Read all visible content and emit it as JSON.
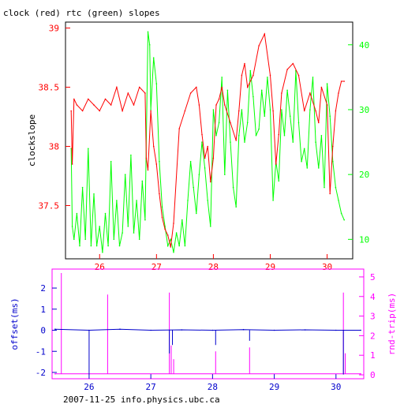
{
  "colors": {
    "red": "#ff0000",
    "green": "#00ff00",
    "blue": "#0000cc",
    "magenta": "#ff00ff",
    "axis": "#000000"
  },
  "chart_data": [
    {
      "type": "line",
      "title": "clock (red) rtc (green) slopes",
      "ylabel": "clockslope",
      "y2label": "",
      "xlim": [
        25.4,
        30.45
      ],
      "ylim": [
        37.05,
        39.05
      ],
      "y2lim": [
        7,
        43.5
      ],
      "x_ticks": [
        26,
        27,
        28,
        29,
        30
      ],
      "y_ticks": [
        37.5,
        38,
        38.5,
        39
      ],
      "y2_ticks": [
        10,
        20,
        30,
        40
      ],
      "series": [
        {
          "axis": "left",
          "x": [
            25.5,
            25.52,
            25.55,
            25.6,
            25.7,
            25.8,
            25.9,
            26.0,
            26.1,
            26.2,
            26.3,
            26.4,
            26.5,
            26.6,
            26.7,
            26.8,
            26.82,
            26.85,
            26.9,
            26.95,
            27.0,
            27.05,
            27.1,
            27.15,
            27.2,
            27.25,
            27.3,
            27.4,
            27.5,
            27.6,
            27.7,
            27.75,
            27.8,
            27.85,
            27.9,
            27.95,
            28.0,
            28.05,
            28.1,
            28.15,
            28.2,
            28.3,
            28.4,
            28.45,
            28.5,
            28.55,
            28.6,
            28.7,
            28.8,
            28.9,
            29.0,
            29.05,
            29.1,
            29.15,
            29.2,
            29.3,
            29.4,
            29.5,
            29.6,
            29.7,
            29.8,
            29.85,
            29.9,
            30.0,
            30.05,
            30.1,
            30.15,
            30.2,
            30.25,
            30.3
          ],
          "y": [
            38.3,
            37.85,
            38.4,
            38.35,
            38.3,
            38.4,
            38.35,
            38.3,
            38.4,
            38.35,
            38.5,
            38.3,
            38.45,
            38.35,
            38.5,
            38.45,
            37.9,
            37.8,
            38.3,
            38.0,
            37.85,
            37.6,
            37.4,
            37.3,
            37.25,
            37.15,
            37.35,
            38.15,
            38.3,
            38.45,
            38.5,
            38.35,
            38.1,
            37.9,
            38.0,
            37.7,
            37.9,
            38.35,
            38.4,
            38.5,
            38.35,
            38.2,
            38.05,
            38.3,
            38.6,
            38.7,
            38.5,
            38.6,
            38.85,
            38.95,
            38.6,
            38.3,
            37.85,
            38.1,
            38.45,
            38.65,
            38.7,
            38.6,
            38.3,
            38.45,
            38.3,
            38.2,
            38.5,
            38.35,
            37.6,
            38.0,
            38.3,
            38.45,
            38.55,
            38.55
          ]
        },
        {
          "axis": "right",
          "x": [
            25.5,
            25.52,
            25.55,
            25.6,
            25.65,
            25.7,
            25.75,
            25.8,
            25.85,
            25.9,
            25.95,
            26.0,
            26.05,
            26.1,
            26.15,
            26.2,
            26.25,
            26.3,
            26.35,
            26.4,
            26.45,
            26.5,
            26.55,
            26.6,
            26.65,
            26.7,
            26.75,
            26.8,
            26.85,
            26.88,
            26.9,
            26.95,
            27.0,
            27.05,
            27.1,
            27.15,
            27.2,
            27.25,
            27.3,
            27.35,
            27.4,
            27.45,
            27.5,
            27.55,
            27.6,
            27.65,
            27.7,
            27.75,
            27.8,
            27.85,
            27.9,
            27.95,
            28.0,
            28.05,
            28.1,
            28.15,
            28.2,
            28.25,
            28.3,
            28.35,
            28.4,
            28.45,
            28.5,
            28.55,
            28.6,
            28.65,
            28.7,
            28.75,
            28.8,
            28.85,
            28.9,
            28.95,
            29.0,
            29.05,
            29.1,
            29.15,
            29.2,
            29.25,
            29.3,
            29.35,
            29.4,
            29.45,
            29.5,
            29.55,
            29.6,
            29.65,
            29.7,
            29.75,
            29.8,
            29.85,
            29.9,
            29.95,
            30.0,
            30.05,
            30.1,
            30.15,
            30.2,
            30.25,
            30.3
          ],
          "y": [
            24,
            12,
            10,
            14,
            9,
            18,
            10,
            24,
            9,
            17,
            9,
            12,
            8,
            14,
            9,
            22,
            10,
            16,
            9,
            11,
            20,
            12,
            23,
            11,
            16,
            10,
            19,
            13,
            42,
            40,
            30,
            38,
            34,
            22,
            15,
            12,
            9,
            10,
            8,
            11,
            9,
            13,
            9,
            16,
            22,
            18,
            14,
            20,
            25,
            21,
            16,
            12,
            30,
            26,
            28,
            35,
            20,
            33,
            25,
            18,
            15,
            26,
            30,
            25,
            28,
            36,
            32,
            26,
            27,
            33,
            29,
            35,
            30,
            16,
            22,
            19,
            30,
            26,
            33,
            29,
            25,
            36,
            28,
            22,
            24,
            21,
            30,
            35,
            25,
            21,
            26,
            18,
            34,
            29,
            22,
            18,
            16,
            14,
            13
          ]
        }
      ]
    },
    {
      "type": "line",
      "xlabel": "",
      "ylabel": "offset(ms)",
      "y2label": "rnd-trip(ms)",
      "xlim": [
        25.4,
        30.45
      ],
      "ylim": [
        -2.3,
        2.9
      ],
      "y2lim": [
        -0.2,
        5.4
      ],
      "x_ticks": [
        26,
        27,
        28,
        29,
        30
      ],
      "y_ticks": [
        -2,
        -1,
        0,
        1,
        2
      ],
      "y2_ticks": [
        0,
        1,
        2,
        3,
        4,
        5
      ],
      "series": [
        {
          "axis": "left",
          "x": [
            25.45,
            26.0,
            26.5,
            27.0,
            27.5,
            28.0,
            28.5,
            29.0,
            29.5,
            30.0,
            30.4
          ],
          "y": [
            0.05,
            0.0,
            0.05,
            0.0,
            0.02,
            0.0,
            0.03,
            0.0,
            0.02,
            0.0,
            0.0
          ]
        },
        {
          "axis": "right",
          "x": [
            25.45,
            30.4
          ],
          "y": [
            0.05,
            0.05
          ]
        }
      ],
      "offset_spikes": [
        {
          "x": 26.0,
          "y": -2.1
        },
        {
          "x": 27.3,
          "y": -1.1
        },
        {
          "x": 27.35,
          "y": -0.7
        },
        {
          "x": 28.05,
          "y": -0.7
        },
        {
          "x": 28.6,
          "y": -0.5
        },
        {
          "x": 30.12,
          "y": -2.1
        }
      ],
      "rtt_spikes": [
        {
          "x": 25.55,
          "y": 5.2
        },
        {
          "x": 26.3,
          "y": 4.1
        },
        {
          "x": 27.3,
          "y": 4.2
        },
        {
          "x": 27.33,
          "y": 1.5
        },
        {
          "x": 27.37,
          "y": 0.8
        },
        {
          "x": 28.05,
          "y": 1.2
        },
        {
          "x": 28.6,
          "y": 1.4
        },
        {
          "x": 30.12,
          "y": 4.2
        },
        {
          "x": 30.15,
          "y": 1.1
        }
      ]
    }
  ],
  "footer": "2007-11-25 info.physics.ubc.ca"
}
